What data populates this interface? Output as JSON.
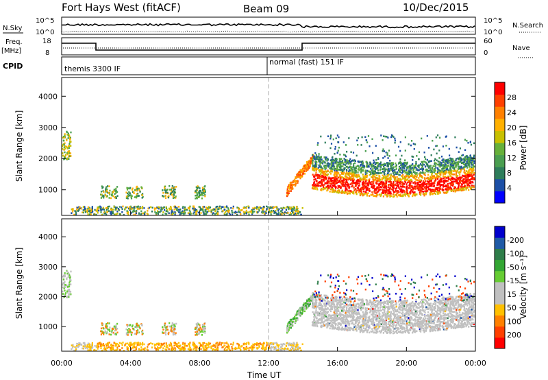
{
  "header": {
    "station": "Fort Hays West (fitACF)",
    "beam": "Beam 09",
    "date": "10/Dec/2015"
  },
  "panels": {
    "noise": {
      "left_label": "N.Sky",
      "right_label": "N.Search",
      "left_ticks": [
        "10^5",
        "10^0"
      ],
      "right_ticks": [
        "10^5",
        "10^0"
      ]
    },
    "freq": {
      "left_label_1": "Freq.",
      "left_label_2": "[MHz]",
      "left_ticks": [
        "18",
        "8"
      ],
      "right_label": "Nave",
      "right_ticks": [
        "60",
        "0"
      ]
    },
    "cpid": {
      "label": "CPID",
      "modes": [
        "themis 3300 IF",
        "normal (fast) 151 IF"
      ]
    }
  },
  "colors": {
    "power": [
      "#0000ff",
      "#1c4fa6",
      "#2e7d5b",
      "#4a9e50",
      "#66b03a",
      "#c8c000",
      "#ffb000",
      "#ff8000",
      "#ff4000",
      "#ff0000"
    ],
    "velocity": [
      "#0000cc",
      "#1f5aa6",
      "#2e7d4a",
      "#33a633",
      "#66cc33",
      "#c0c0c0",
      "#c0c0c0",
      "#ffc000",
      "#ff8000",
      "#ff4000",
      "#ff0000"
    ],
    "ground_scatter": "#c0c0c0"
  },
  "chart_data": [
    {
      "type": "heatmap",
      "name": "power",
      "xlabel": "",
      "ylabel": "Slant Range [km]",
      "xlim": [
        0,
        24
      ],
      "ylim": [
        180,
        4600
      ],
      "y_ticks": [
        "1000",
        "2000",
        "3000",
        "4000"
      ],
      "colorbar": {
        "label": "Power [dB]",
        "ticks": [
          "4",
          "8",
          "12",
          "16",
          "20",
          "24",
          "28"
        ],
        "range": [
          0,
          30
        ]
      }
    },
    {
      "type": "heatmap",
      "name": "velocity",
      "xlabel": "Time UT",
      "ylabel": "Slant Range [km]",
      "xlim": [
        0,
        24
      ],
      "ylim": [
        180,
        4600
      ],
      "x_ticks": [
        "00:00",
        "04:00",
        "08:00",
        "12:00",
        "16:00",
        "20:00",
        "00:00"
      ],
      "y_ticks": [
        "1000",
        "2000",
        "3000",
        "4000"
      ],
      "colorbar": {
        "label": "Velocity [m s⁻¹]",
        "ticks": [
          "200",
          "100",
          "50",
          "15",
          "-15",
          "-50",
          "-100",
          "-200"
        ],
        "range": [
          -250,
          250
        ]
      }
    }
  ]
}
